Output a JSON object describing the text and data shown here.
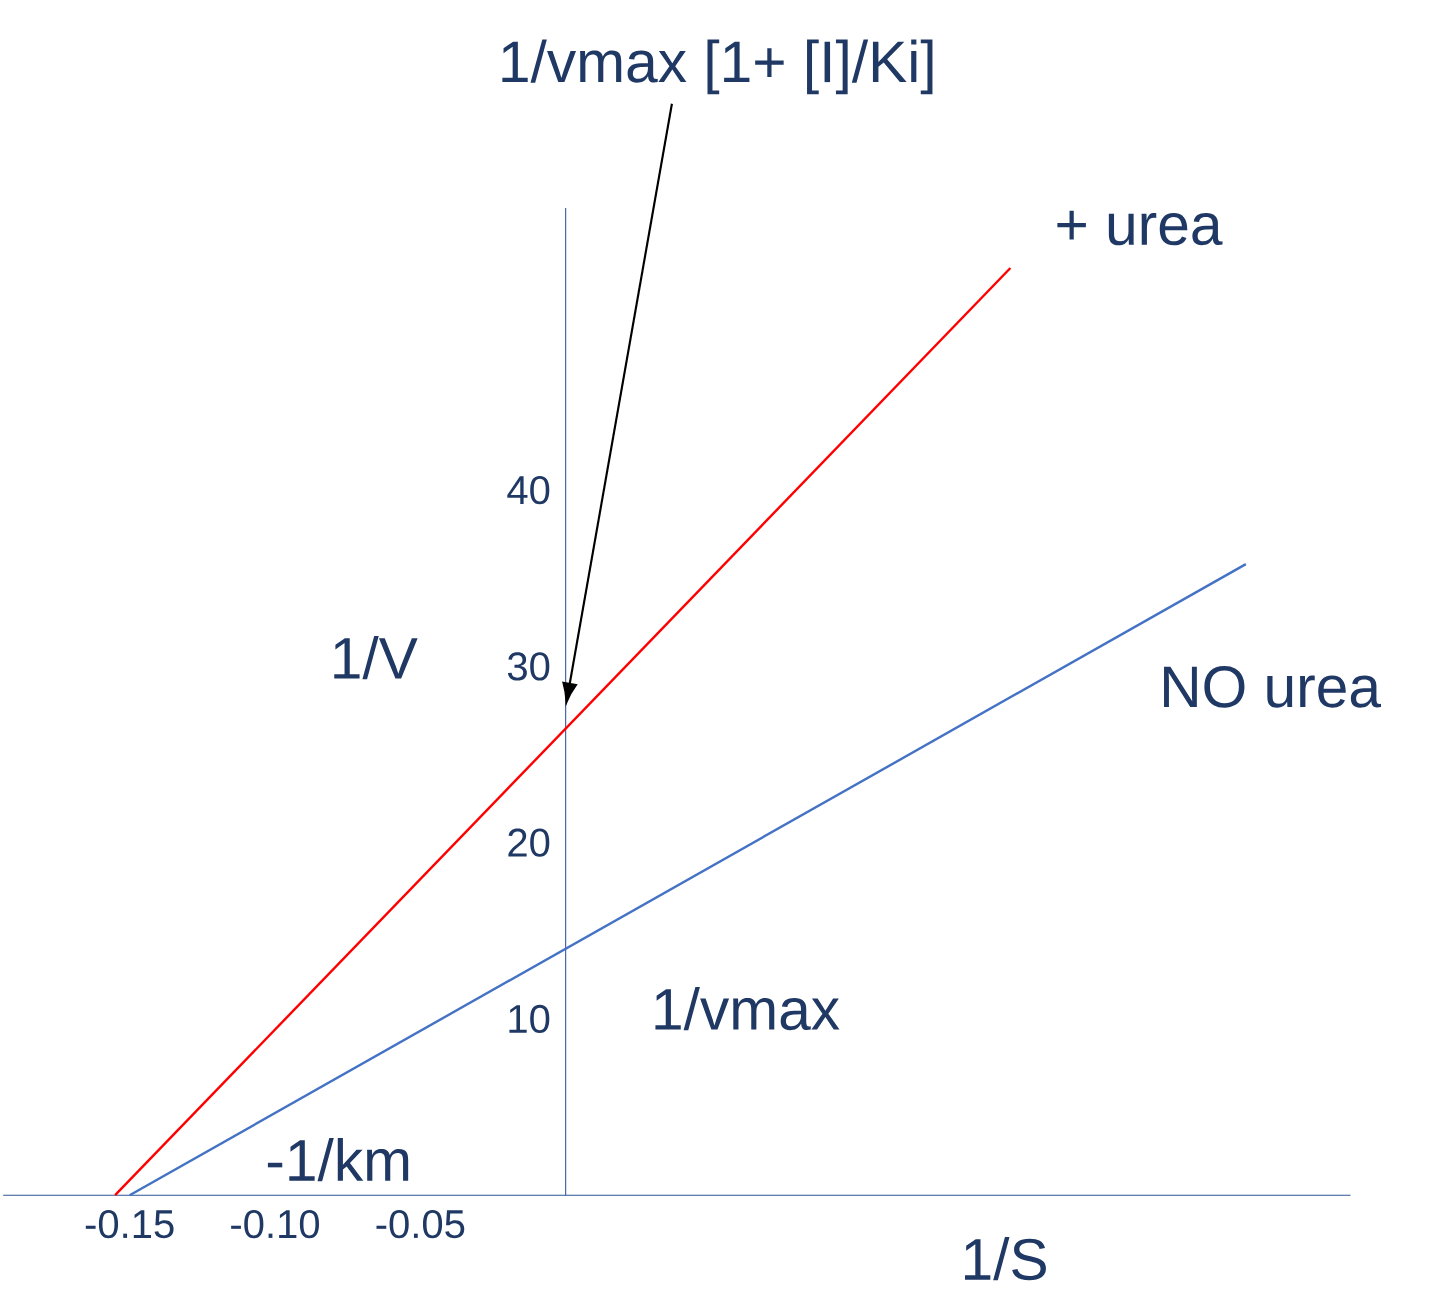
{
  "chart_data": {
    "type": "line",
    "xlabel": "1/S",
    "ylabel": "1/V",
    "series": [
      {
        "name": "+ urea",
        "color": "#ff0000",
        "x": [
          -0.155,
          0.153
        ],
        "values": [
          0,
          52.6
        ]
      },
      {
        "name": "NO urea",
        "color": "#4472c4",
        "x": [
          -0.15,
          0.234
        ],
        "values": [
          0,
          35.8
        ]
      }
    ],
    "xlim": [
      -0.1935,
      0.27
    ],
    "ylim": [
      0,
      56
    ],
    "xticks": [
      -0.15,
      {
        "value": -0.1,
        "label": "-0.10"
      },
      -0.05
    ],
    "yticks": [
      10,
      20,
      30,
      40
    ],
    "annotations": [
      "1/vmax [1+ [I]/Ki]",
      "1/vmax",
      "-1/km"
    ]
  }
}
